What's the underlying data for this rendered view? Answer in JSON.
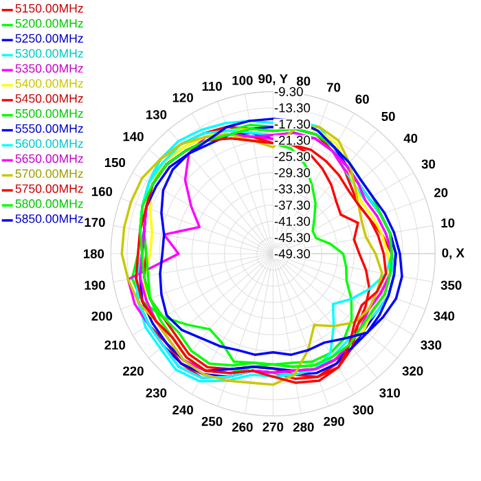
{
  "chart_data": {
    "type": "radar",
    "categories": [
      "90, Y",
      "80",
      "70",
      "60",
      "50",
      "40",
      "30",
      "20",
      "10",
      "0, X",
      "350",
      "340",
      "330",
      "320",
      "310",
      "300",
      "290",
      "280",
      "270",
      "260",
      "250",
      "240",
      "230",
      "220",
      "210",
      "200",
      "190",
      "180",
      "170",
      "160",
      "150",
      "140",
      "130",
      "120",
      "110",
      "100"
    ],
    "ylim": [
      -49.3,
      -9.3
    ],
    "yticks": [
      {
        "value": -49.3,
        "label": "-49.30"
      },
      {
        "value": -45.3,
        "label": "-45.30"
      },
      {
        "value": -41.3,
        "label": "-41.30"
      },
      {
        "value": -37.3,
        "label": "-37.30"
      },
      {
        "value": -33.3,
        "label": "-33.30"
      },
      {
        "value": -29.3,
        "label": "-29.30"
      },
      {
        "value": -25.3,
        "label": "-25.30"
      },
      {
        "value": -21.3,
        "label": "-21.30"
      },
      {
        "value": -17.3,
        "label": "-17.30"
      },
      {
        "value": -13.3,
        "label": "-13.30"
      },
      {
        "value": -9.3,
        "label": "-9.30"
      }
    ],
    "grid": true,
    "legend": "top left",
    "series": [
      {
        "name": "5150.00MHz",
        "color": "#ff0000",
        "values": [
          -19,
          -18,
          -18,
          -20,
          -22,
          -24,
          -25,
          -24,
          -22,
          -20,
          -20,
          -21,
          -22,
          -22,
          -20,
          -18,
          -17,
          -18,
          -20,
          -20,
          -17,
          -14,
          -14,
          -15,
          -14,
          -14,
          -15,
          -17,
          -16,
          -15,
          -14,
          -13,
          -14,
          -15,
          -16,
          -18
        ]
      },
      {
        "name": "5200.00MHz",
        "color": "#00ff00",
        "values": [
          -18,
          -17,
          -17,
          -19,
          -21,
          -22,
          -22,
          -21,
          -20,
          -19,
          -20,
          -20,
          -21,
          -20,
          -19,
          -19,
          -20,
          -21,
          -22,
          -22,
          -21,
          -24,
          -25,
          -22,
          -18,
          -15,
          -14,
          -16,
          -16,
          -15,
          -14,
          -14,
          -15,
          -16,
          -17,
          -17
        ]
      },
      {
        "name": "5250.00MHz",
        "color": "#0000ff",
        "values": [
          -21,
          -20,
          -19,
          -20,
          -21,
          -22,
          -22,
          -21,
          -20,
          -19,
          -19,
          -19,
          -20,
          -20,
          -19,
          -18,
          -18,
          -19,
          -20,
          -20,
          -17,
          -15,
          -14,
          -14,
          -14,
          -14,
          -15,
          -17,
          -17,
          -16,
          -15,
          -15,
          -16,
          -17,
          -18,
          -19
        ]
      },
      {
        "name": "5300.00MHz",
        "color": "#00ffff",
        "values": [
          -17,
          -16,
          -16,
          -19,
          -22,
          -23,
          -23,
          -22,
          -21,
          -20,
          -19,
          -19,
          -20,
          -21,
          -21,
          -20,
          -19,
          -19,
          -19,
          -19,
          -16,
          -13,
          -12,
          -13,
          -13,
          -14,
          -15,
          -17,
          -16,
          -15,
          -14,
          -13,
          -13,
          -14,
          -15,
          -16
        ]
      },
      {
        "name": "5350.00MHz",
        "color": "#ff00ff",
        "values": [
          -21,
          -20,
          -19,
          -20,
          -22,
          -22,
          -22,
          -21,
          -20,
          -20,
          -20,
          -21,
          -22,
          -21,
          -20,
          -19,
          -19,
          -20,
          -20,
          -20,
          -17,
          -14,
          -13,
          -14,
          -14,
          -13,
          -13,
          -26,
          -22,
          -30,
          -26,
          -21,
          -17,
          -16,
          -18,
          -20
        ]
      },
      {
        "name": "5400.00MHz",
        "color": "#ffff00",
        "values": [
          -19,
          -17,
          -17,
          -18,
          -21,
          -23,
          -24,
          -23,
          -22,
          -21,
          -20,
          -20,
          -21,
          -20,
          -20,
          -19,
          -19,
          -20,
          -21,
          -21,
          -18,
          -16,
          -16,
          -17,
          -16,
          -16,
          -17,
          -19,
          -19,
          -17,
          -15,
          -14,
          -15,
          -16,
          -17,
          -18
        ]
      },
      {
        "name": "5450.00MHz",
        "color": "#ff0000",
        "values": [
          -22,
          -22,
          -23,
          -25,
          -27,
          -29,
          -30,
          -27,
          -29,
          -28,
          -26,
          -24,
          -23,
          -22,
          -19,
          -17,
          -17,
          -19,
          -21,
          -21,
          -19,
          -17,
          -17,
          -18,
          -18,
          -17,
          -17,
          -18,
          -17,
          -16,
          -15,
          -15,
          -16,
          -17,
          -18,
          -20
        ]
      },
      {
        "name": "5500.00MHz",
        "color": "#00ff00",
        "values": [
          -22,
          -23,
          -26,
          -30,
          -33,
          -36,
          -38,
          -38,
          -35,
          -32,
          -31,
          -30,
          -27,
          -24,
          -22,
          -21,
          -21,
          -22,
          -22,
          -21,
          -18,
          -16,
          -16,
          -17,
          -17,
          -17,
          -18,
          -18,
          -17,
          -16,
          -15,
          -15,
          -16,
          -17,
          -19,
          -21
        ]
      },
      {
        "name": "5550.00MHz",
        "color": "#0000ff",
        "values": [
          -18,
          -18,
          -18,
          -19,
          -21,
          -22,
          -22,
          -21,
          -20,
          -19,
          -19,
          -19,
          -19,
          -19,
          -19,
          -19,
          -19,
          -20,
          -21,
          -21,
          -19,
          -16,
          -15,
          -15,
          -15,
          -15,
          -16,
          -17,
          -17,
          -16,
          -16,
          -16,
          -17,
          -18,
          -18,
          -18
        ]
      },
      {
        "name": "5600.00MHz",
        "color": "#00ffff",
        "values": [
          -20,
          -19,
          -19,
          -20,
          -21,
          -22,
          -22,
          -21,
          -20,
          -20,
          -21,
          -24,
          -27,
          -30,
          -26,
          -21,
          -19,
          -19,
          -20,
          -20,
          -17,
          -14,
          -13,
          -14,
          -14,
          -14,
          -15,
          -17,
          -16,
          -15,
          -14,
          -14,
          -14,
          -15,
          -17,
          -19
        ]
      },
      {
        "name": "5650.00MHz",
        "color": "#ff00ff",
        "values": [
          -20,
          -19,
          -19,
          -20,
          -21,
          -22,
          -23,
          -22,
          -21,
          -20,
          -20,
          -20,
          -21,
          -21,
          -20,
          -19,
          -19,
          -20,
          -20,
          -20,
          -18,
          -16,
          -15,
          -16,
          -16,
          -16,
          -16,
          -17,
          -17,
          -16,
          -15,
          -15,
          -16,
          -17,
          -18,
          -20
        ]
      },
      {
        "name": "5700.00MHz",
        "color": "#c8c800",
        "values": [
          -23,
          -18,
          -16,
          -17,
          -20,
          -23,
          -25,
          -26,
          -26,
          -24,
          -22,
          -22,
          -22,
          -23,
          -26,
          -29,
          -24,
          -19,
          -17,
          -17,
          -16,
          -15,
          -15,
          -16,
          -16,
          -14,
          -13,
          -12,
          -12,
          -12,
          -12,
          -13,
          -14,
          -16,
          -18,
          -21
        ]
      },
      {
        "name": "5750.00MHz",
        "color": "#ff0000",
        "values": [
          -22,
          -22,
          -22,
          -23,
          -24,
          -25,
          -25,
          -24,
          -23,
          -22,
          -21,
          -22,
          -24,
          -23,
          -20,
          -17,
          -16,
          -17,
          -19,
          -20,
          -18,
          -16,
          -16,
          -17,
          -16,
          -15,
          -15,
          -16,
          -16,
          -16,
          -15,
          -15,
          -16,
          -17,
          -19,
          -21
        ]
      },
      {
        "name": "5800.00MHz",
        "color": "#00ff00",
        "values": [
          -19,
          -18,
          -18,
          -19,
          -20,
          -21,
          -21,
          -21,
          -20,
          -20,
          -20,
          -20,
          -21,
          -21,
          -20,
          -20,
          -20,
          -21,
          -22,
          -22,
          -20,
          -18,
          -18,
          -19,
          -18,
          -17,
          -17,
          -17,
          -16,
          -15,
          -15,
          -15,
          -16,
          -17,
          -18,
          -18
        ]
      },
      {
        "name": "5850.00MHz",
        "color": "#0000ff",
        "values": [
          -16,
          -16,
          -17,
          -19,
          -20,
          -21,
          -21,
          -20,
          -19,
          -18,
          -17,
          -17,
          -18,
          -19,
          -22,
          -24,
          -24,
          -24,
          -25,
          -24,
          -24,
          -23,
          -22,
          -20,
          -19,
          -20,
          -21,
          -22,
          -22,
          -20,
          -18,
          -17,
          -17,
          -17,
          -16,
          -16
        ]
      }
    ]
  }
}
